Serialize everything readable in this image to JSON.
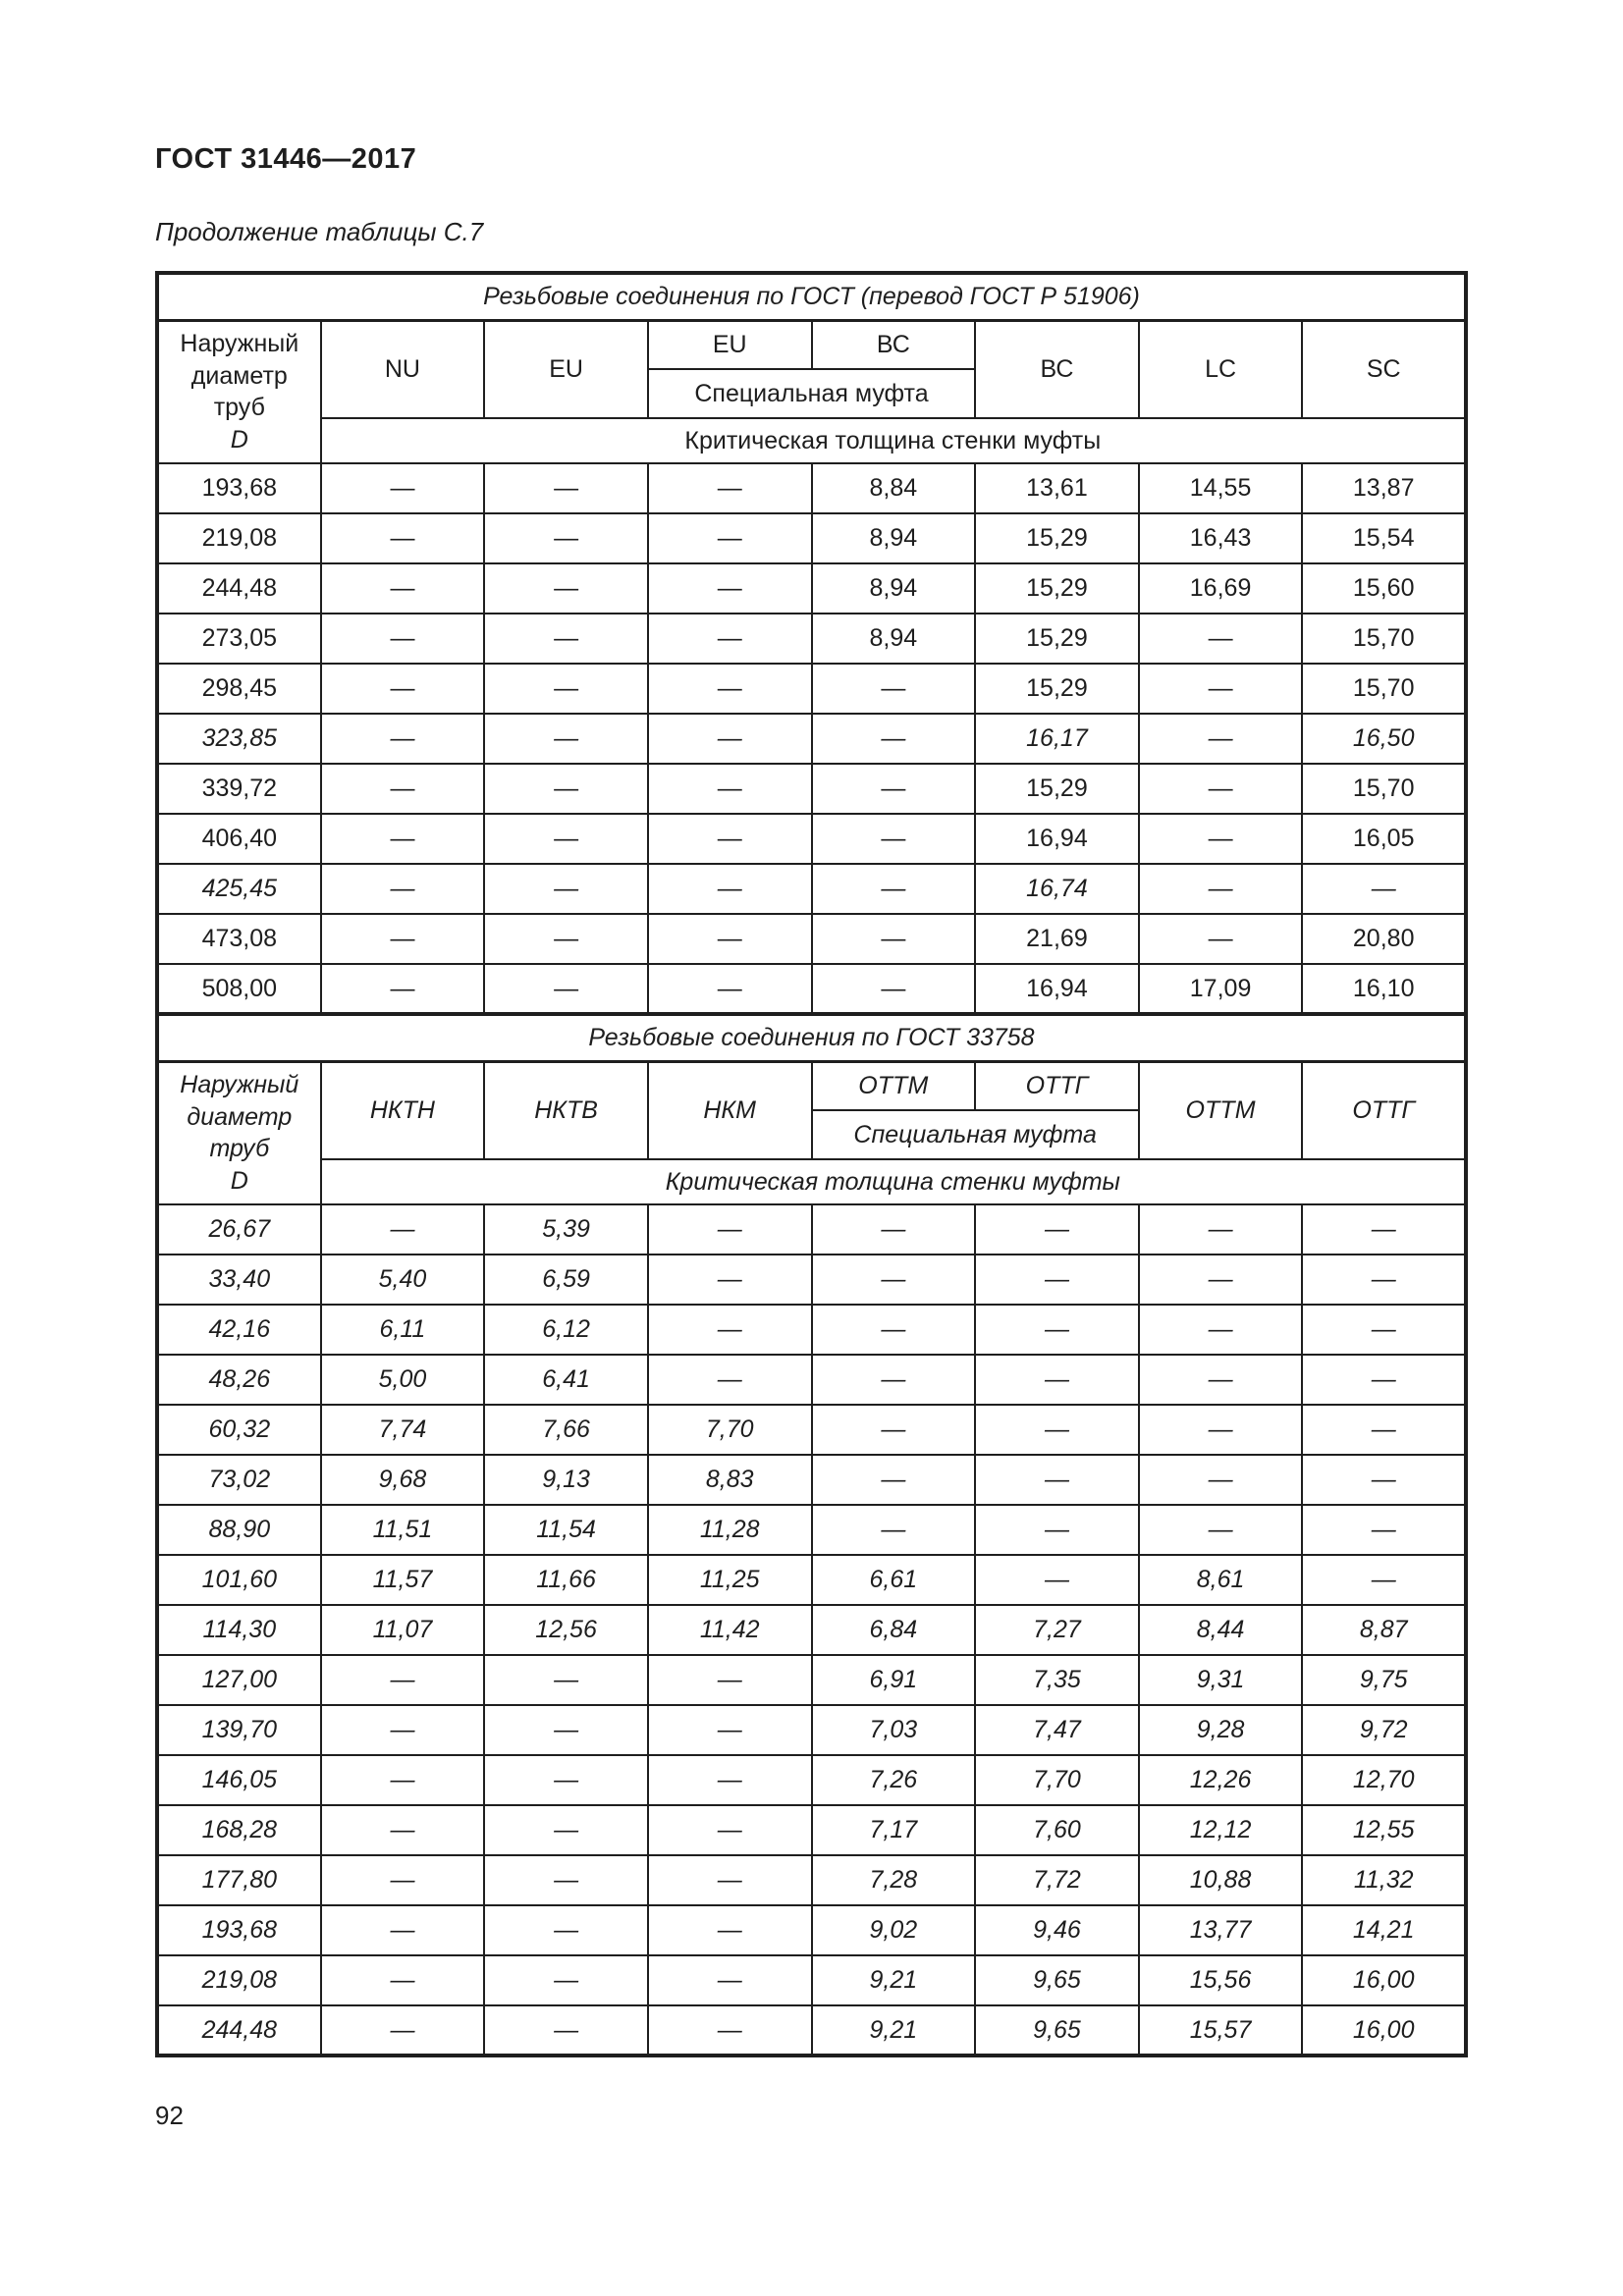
{
  "page": {
    "header_title": "ГОСТ 31446—2017",
    "table_caption": "Продолжение таблицы С.7",
    "page_number": "92"
  },
  "table": {
    "sections": [
      {
        "title": "Резьбовые соединения по ГОСТ (перевод ГОСТ Р 51906)",
        "diameter": {
          "label": "Наружный\nдиаметр\nтруб",
          "symbol": "D"
        },
        "headers": {
          "nu": "NU",
          "eu": "EU",
          "eu_spec": "EU",
          "bc_spec": "ВС",
          "spec_label": "Специальная муфта",
          "bc": "ВС",
          "lc": "LC",
          "sc": "SC"
        },
        "critical_label": "Критическая толщина стенки муфты",
        "rows": [
          {
            "d": "193,68",
            "italic": false,
            "values": [
              "—",
              "—",
              "—",
              "8,84",
              "13,61",
              "14,55",
              "13,87"
            ]
          },
          {
            "d": "219,08",
            "italic": false,
            "values": [
              "—",
              "—",
              "—",
              "8,94",
              "15,29",
              "16,43",
              "15,54"
            ]
          },
          {
            "d": "244,48",
            "italic": false,
            "values": [
              "—",
              "—",
              "—",
              "8,94",
              "15,29",
              "16,69",
              "15,60"
            ]
          },
          {
            "d": "273,05",
            "italic": false,
            "values": [
              "—",
              "—",
              "—",
              "8,94",
              "15,29",
              "—",
              "15,70"
            ]
          },
          {
            "d": "298,45",
            "italic": false,
            "values": [
              "—",
              "—",
              "—",
              "—",
              "15,29",
              "—",
              "15,70"
            ]
          },
          {
            "d": "323,85",
            "italic": true,
            "values": [
              "—",
              "—",
              "—",
              "—",
              "16,17",
              "—",
              "16,50"
            ]
          },
          {
            "d": "339,72",
            "italic": false,
            "values": [
              "—",
              "—",
              "—",
              "—",
              "15,29",
              "—",
              "15,70"
            ]
          },
          {
            "d": "406,40",
            "italic": false,
            "values": [
              "—",
              "—",
              "—",
              "—",
              "16,94",
              "—",
              "16,05"
            ]
          },
          {
            "d": "425,45",
            "italic": true,
            "values": [
              "—",
              "—",
              "—",
              "—",
              "16,74",
              "—",
              "—"
            ]
          },
          {
            "d": "473,08",
            "italic": false,
            "values": [
              "—",
              "—",
              "—",
              "—",
              "21,69",
              "—",
              "20,80"
            ]
          },
          {
            "d": "508,00",
            "italic": false,
            "values": [
              "—",
              "—",
              "—",
              "—",
              "16,94",
              "17,09",
              "16,10"
            ]
          }
        ]
      },
      {
        "title": "Резьбовые соединения по ГОСТ 33758",
        "diameter": {
          "label": "Наружный\nдиаметр\nтруб",
          "symbol": "D"
        },
        "headers": {
          "nktn": "НКТН",
          "nktv": "НКТВ",
          "nkm": "НКМ",
          "ottm_spec": "ОТТМ",
          "ottg_spec": "ОТТГ",
          "spec_label": "Специальная муфта",
          "ottm": "ОТТМ",
          "ottg": "ОТТГ"
        },
        "critical_label": "Критическая толщина стенки муфты",
        "rows": [
          {
            "d": "26,67",
            "italic": true,
            "values": [
              "—",
              "5,39",
              "—",
              "—",
              "—",
              "—",
              "—"
            ]
          },
          {
            "d": "33,40",
            "italic": true,
            "values": [
              "5,40",
              "6,59",
              "—",
              "—",
              "—",
              "—",
              "—"
            ]
          },
          {
            "d": "42,16",
            "italic": true,
            "values": [
              "6,11",
              "6,12",
              "—",
              "—",
              "—",
              "—",
              "—"
            ]
          },
          {
            "d": "48,26",
            "italic": true,
            "values": [
              "5,00",
              "6,41",
              "—",
              "—",
              "—",
              "—",
              "—"
            ]
          },
          {
            "d": "60,32",
            "italic": true,
            "values": [
              "7,74",
              "7,66",
              "7,70",
              "—",
              "—",
              "—",
              "—"
            ]
          },
          {
            "d": "73,02",
            "italic": true,
            "values": [
              "9,68",
              "9,13",
              "8,83",
              "—",
              "—",
              "—",
              "—"
            ]
          },
          {
            "d": "88,90",
            "italic": true,
            "values": [
              "11,51",
              "11,54",
              "11,28",
              "—",
              "—",
              "—",
              "—"
            ]
          },
          {
            "d": "101,60",
            "italic": true,
            "values": [
              "11,57",
              "11,66",
              "11,25",
              "6,61",
              "—",
              "8,61",
              "—"
            ]
          },
          {
            "d": "114,30",
            "italic": true,
            "values": [
              "11,07",
              "12,56",
              "11,42",
              "6,84",
              "7,27",
              "8,44",
              "8,87"
            ]
          },
          {
            "d": "127,00",
            "italic": true,
            "values": [
              "—",
              "—",
              "—",
              "6,91",
              "7,35",
              "9,31",
              "9,75"
            ]
          },
          {
            "d": "139,70",
            "italic": true,
            "values": [
              "—",
              "—",
              "—",
              "7,03",
              "7,47",
              "9,28",
              "9,72"
            ]
          },
          {
            "d": "146,05",
            "italic": true,
            "values": [
              "—",
              "—",
              "—",
              "7,26",
              "7,70",
              "12,26",
              "12,70"
            ]
          },
          {
            "d": "168,28",
            "italic": true,
            "values": [
              "—",
              "—",
              "—",
              "7,17",
              "7,60",
              "12,12",
              "12,55"
            ]
          },
          {
            "d": "177,80",
            "italic": true,
            "values": [
              "—",
              "—",
              "—",
              "7,28",
              "7,72",
              "10,88",
              "11,32"
            ]
          },
          {
            "d": "193,68",
            "italic": true,
            "values": [
              "—",
              "—",
              "—",
              "9,02",
              "9,46",
              "13,77",
              "14,21"
            ]
          },
          {
            "d": "219,08",
            "italic": true,
            "values": [
              "—",
              "—",
              "—",
              "9,21",
              "9,65",
              "15,56",
              "16,00"
            ]
          },
          {
            "d": "244,48",
            "italic": true,
            "values": [
              "—",
              "—",
              "—",
              "9,21",
              "9,65",
              "15,57",
              "16,00"
            ]
          }
        ]
      }
    ]
  }
}
